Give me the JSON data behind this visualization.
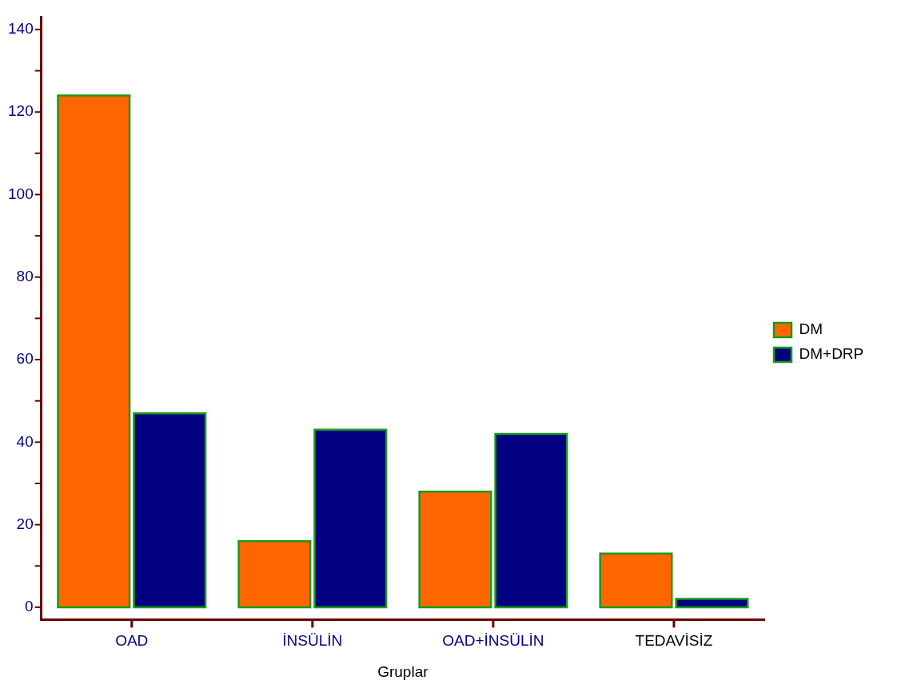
{
  "chart_data": {
    "type": "bar",
    "xlabel": "Gruplar",
    "categories": [
      "OAD",
      "İNSÜLİN",
      "OAD+İNSÜLİN",
      "TEDAVİSİZ"
    ],
    "series": [
      {
        "name": "DM",
        "color": "#ff6600",
        "values": [
          124,
          16,
          28,
          13
        ]
      },
      {
        "name": "DM+DRP",
        "color": "#000080",
        "values": [
          47,
          43,
          42,
          2
        ]
      }
    ],
    "ylim": [
      -3,
      143
    ],
    "yticks": [
      0,
      {
        "value": 10,
        "label": null
      },
      20,
      {
        "value": 30,
        "label": null
      },
      40,
      {
        "value": 50,
        "label": null
      },
      60,
      {
        "value": 70,
        "label": null
      },
      80,
      {
        "value": 90,
        "label": null
      },
      100,
      {
        "value": 110,
        "label": null
      },
      120,
      {
        "value": 130,
        "label": null
      },
      140
    ],
    "grid": false,
    "legend": "right"
  }
}
